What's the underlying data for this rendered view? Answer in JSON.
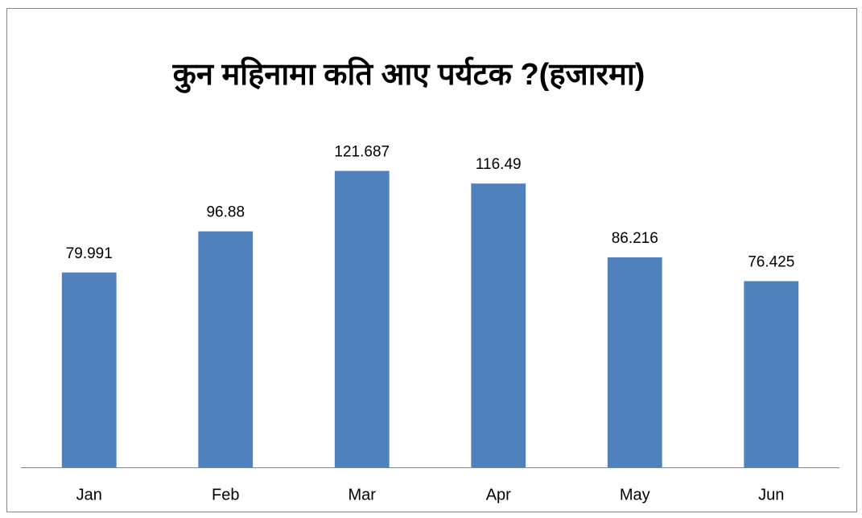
{
  "chart_data": {
    "type": "bar",
    "title": "कुन महिनामा कति आए पर्यटक ?(हजारमा)",
    "categories": [
      "Jan",
      "Feb",
      "Mar",
      "Apr",
      "May",
      "Jun"
    ],
    "values": [
      79.991,
      96.88,
      121.687,
      116.49,
      86.216,
      76.425
    ],
    "color": "#4f81bd",
    "ylim": [
      0,
      140
    ]
  }
}
